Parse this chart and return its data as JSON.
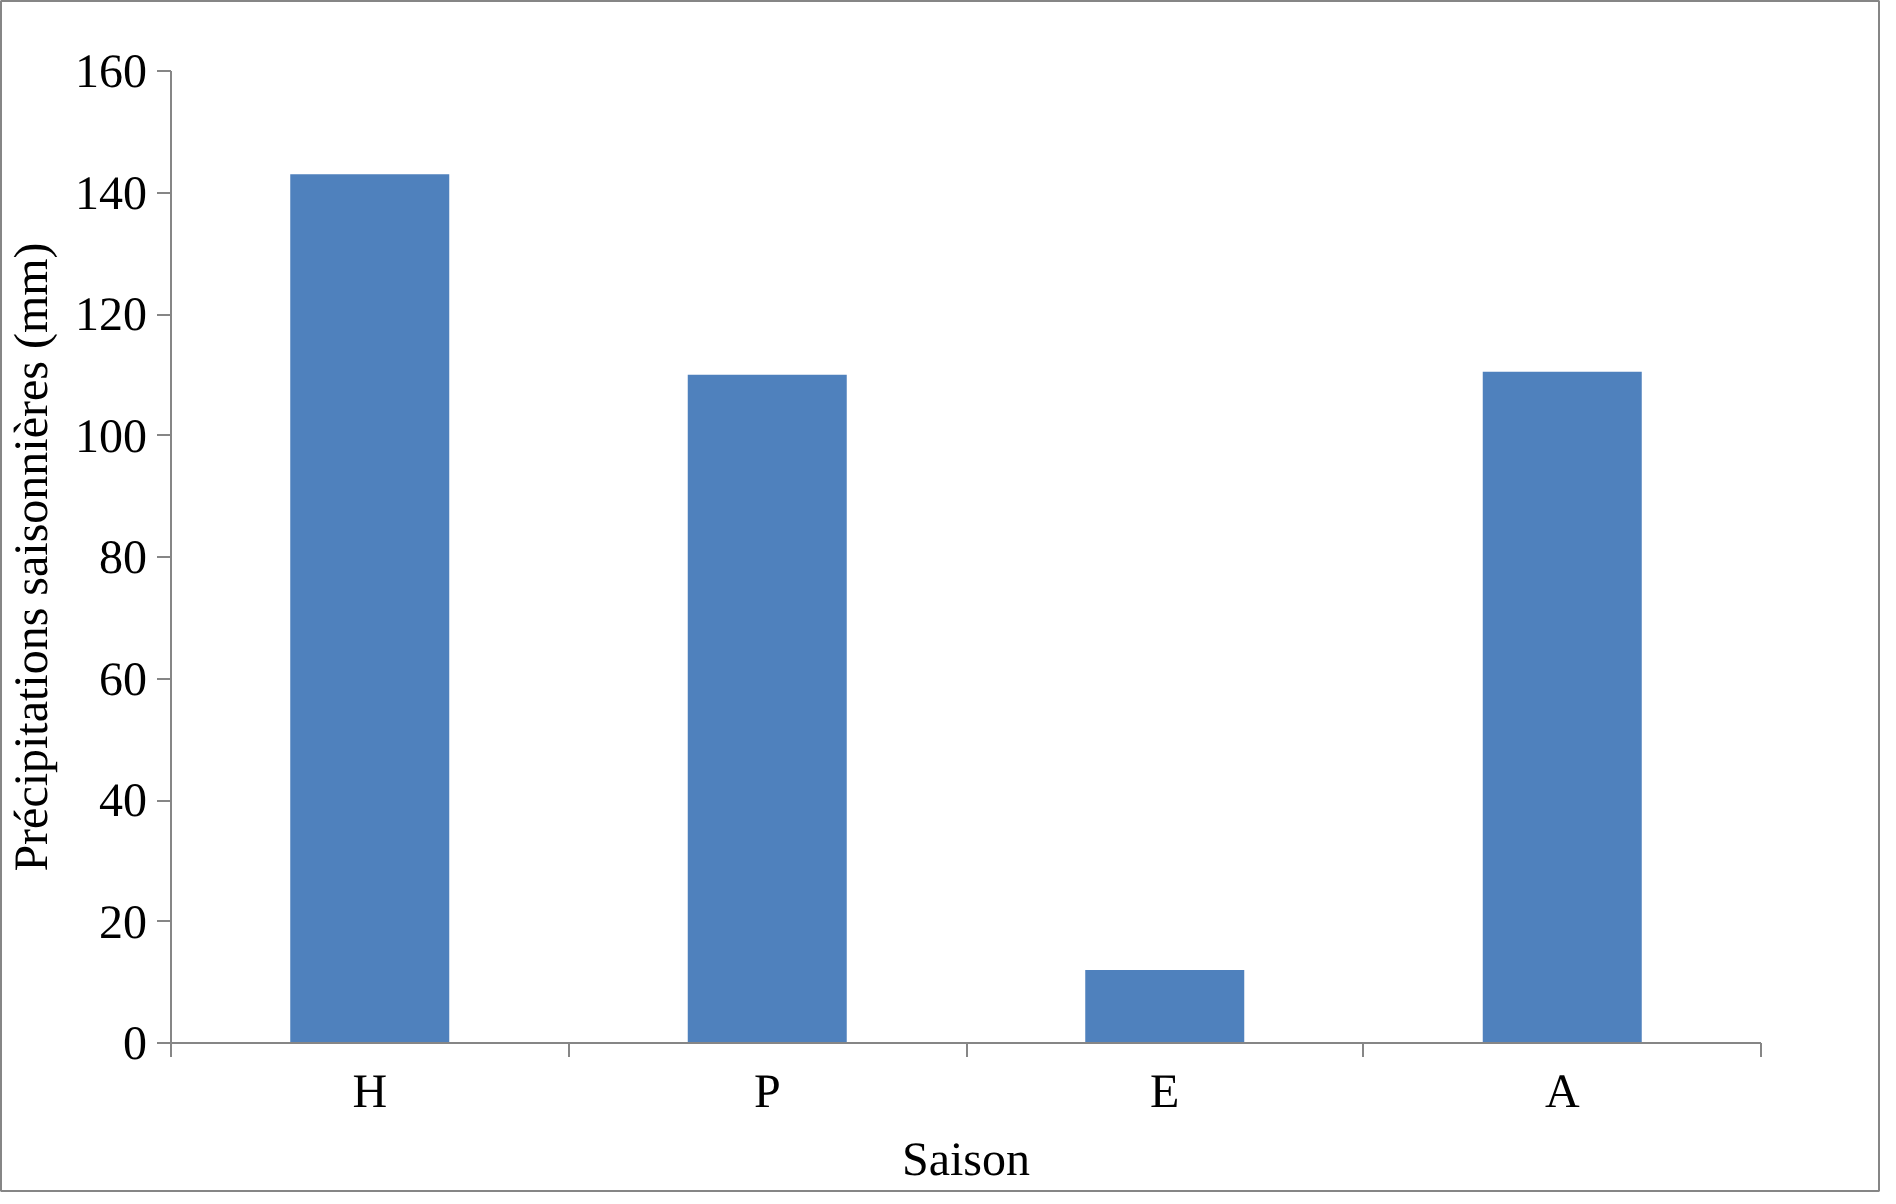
{
  "chart_data": {
    "type": "bar",
    "xlabel": "Saison",
    "ylabel": "Précipitations saisonnières (mm)",
    "categories": [
      "H",
      "P",
      "E",
      "A"
    ],
    "values": [
      143,
      110,
      12,
      110.5
    ],
    "color": "#4f81bd",
    "ylim": [
      0,
      160
    ],
    "yticks": [
      0,
      20,
      40,
      60,
      80,
      100,
      120,
      140,
      160
    ],
    "grid": false
  }
}
